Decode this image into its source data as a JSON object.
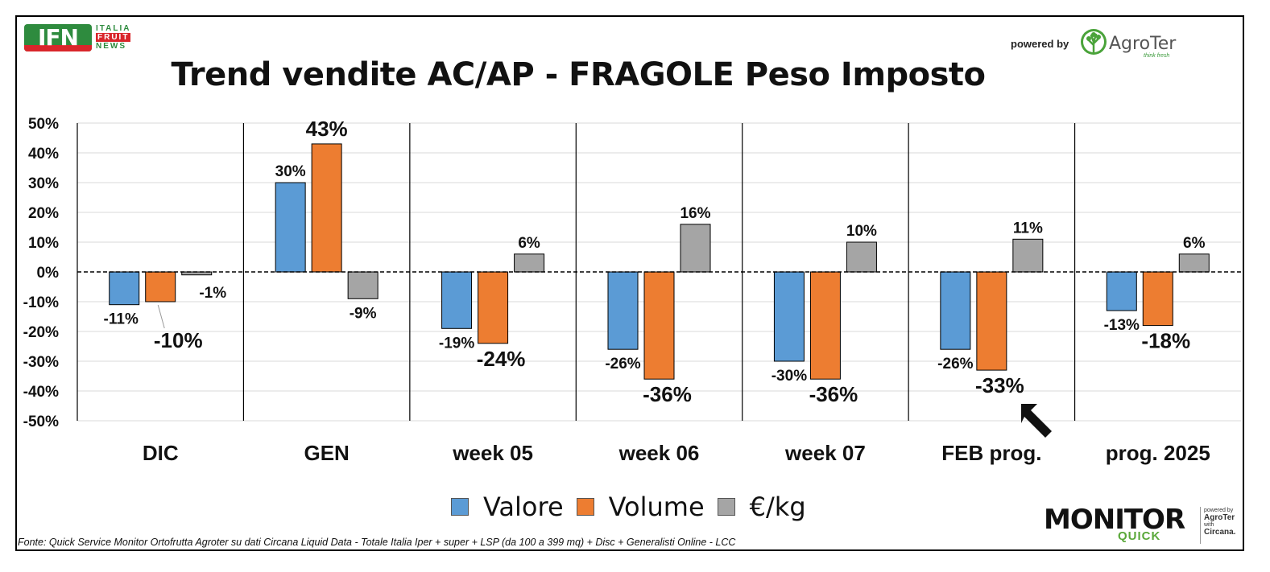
{
  "header": {
    "title": "Trend vendite AC/AP - FRAGOLE Peso Imposto",
    "ifn_logo_text": "IFN",
    "ifn_words": [
      "ITALIA",
      "FRUIT",
      "NEWS"
    ],
    "powered_by": "powered by",
    "agroter_name": "AgroTer",
    "agroter_tagline": "think fresh"
  },
  "colors": {
    "valore": "#5b9bd5",
    "volume": "#ed7d31",
    "prezzo": "#a5a5a5"
  },
  "chart_data": {
    "type": "bar",
    "title": "Trend vendite AC/AP - FRAGOLE Peso Imposto",
    "categories": [
      "DIC",
      "GEN",
      "week 05",
      "week 06",
      "week 07",
      "FEB prog.",
      "prog. 2025"
    ],
    "series": [
      {
        "name": "Valore",
        "values": [
          -11,
          30,
          -19,
          -26,
          -30,
          -26,
          -13
        ]
      },
      {
        "name": "Volume",
        "values": [
          -10,
          43,
          -24,
          -36,
          -36,
          -33,
          -18
        ]
      },
      {
        "name": "€/kg",
        "values": [
          -1,
          -9,
          6,
          16,
          10,
          11,
          6
        ]
      }
    ],
    "value_labels": [
      [
        "-11%",
        "-10%",
        "-1%"
      ],
      [
        "30%",
        "43%",
        "-9%"
      ],
      [
        "-19%",
        "-24%",
        "6%"
      ],
      [
        "-26%",
        "-36%",
        "16%"
      ],
      [
        "-30%",
        "-36%",
        "10%"
      ],
      [
        "-26%",
        "-33%",
        "11%"
      ],
      [
        "-13%",
        "-18%",
        "6%"
      ]
    ],
    "yticks": [
      "50%",
      "40%",
      "30%",
      "20%",
      "10%",
      "0%",
      "-10%",
      "-20%",
      "-30%",
      "-40%",
      "-50%"
    ],
    "ylim": [
      -50,
      50
    ],
    "ystep": 10,
    "grid": true,
    "zero_line": "dashed",
    "legend": "bottom-center",
    "annotation": "arrow pointing to -33% in FEB prog."
  },
  "legend": {
    "items": [
      "Valore",
      "Volume",
      "€/kg"
    ]
  },
  "footer": {
    "source": "Fonte: Quick Service Monitor Ortofrutta Agroter su dati Circana Liquid Data - Totale Italia Iper + super + LSP (da 100 a 399 mq) + Disc + Generalisti Online - LCC",
    "monitor_word": "MONITOR",
    "monitor_quick": "QUICK",
    "badge_powered": "powered by",
    "badge_agroter": "AgroTer",
    "badge_with": "with",
    "badge_circana": "Circana."
  }
}
